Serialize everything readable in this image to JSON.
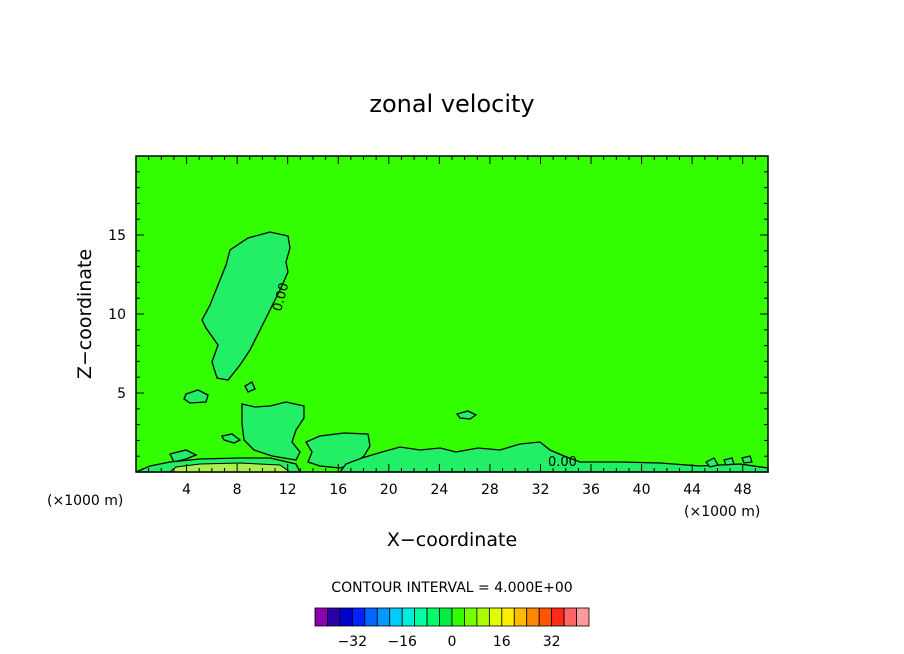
{
  "chart_data": {
    "type": "contour",
    "title": "zonal velocity",
    "xlabel": "X−coordinate",
    "ylabel": "Z−coordinate",
    "x_unit_left": "(×1000 m)",
    "x_unit_right": "(×1000 m)",
    "xlim": [
      0,
      50
    ],
    "ylim": [
      0,
      20
    ],
    "x_ticks": [
      4,
      8,
      12,
      16,
      20,
      24,
      28,
      32,
      36,
      40,
      44,
      48
    ],
    "y_ticks": [
      5,
      10,
      15
    ],
    "x_minor_step": 1,
    "y_minor_step": 1,
    "background_value": 0,
    "background_color": "#33ff00",
    "contour_label_values": [
      "0.00",
      "0.00"
    ],
    "contour_interval_label": "CONTOUR INTERVAL = 4.000E+00",
    "colorbar": {
      "min": -40,
      "max": 40,
      "step": 4,
      "tick_values": [
        -32,
        -16,
        0,
        16,
        32
      ],
      "tick_labels": [
        "−32",
        "−16",
        "0",
        "16",
        "32"
      ],
      "colors": [
        "#8a00b0",
        "#2b00a8",
        "#0000cc",
        "#0022ff",
        "#0066ff",
        "#0099ff",
        "#00ccff",
        "#00eedd",
        "#00ffa0",
        "#00ff66",
        "#00ee44",
        "#33ff00",
        "#77ff00",
        "#aaff00",
        "#ddff00",
        "#ffee00",
        "#ffbb00",
        "#ff8800",
        "#ff5500",
        "#ff2a1a",
        "#ff6666",
        "#ff9a9a"
      ]
    }
  }
}
